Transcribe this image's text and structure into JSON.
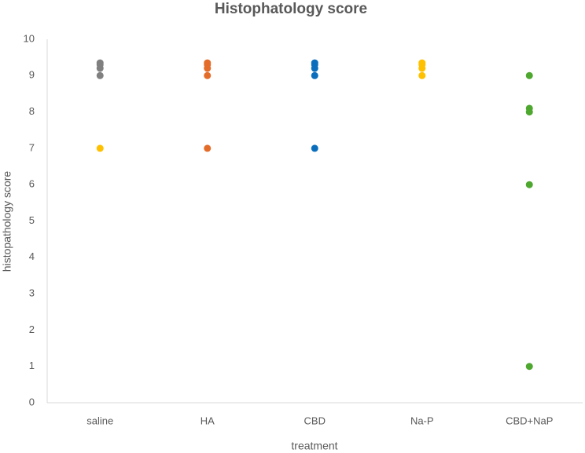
{
  "chart_data": {
    "type": "dot",
    "title": "Histophatology score",
    "x_label": "treatment",
    "y_label": "histopathology score",
    "categories": [
      "saline",
      "HA",
      "CBD",
      "Na-P",
      "CBD+NaP"
    ],
    "series": [
      {
        "color": "#808080",
        "values": [
          [
            9,
            9.2,
            9.3,
            9.35
          ],
          [],
          [],
          [],
          []
        ]
      },
      {
        "color": "#ffc000",
        "values": [
          [
            7
          ],
          [],
          [],
          [
            9,
            9.2,
            9.3,
            9.35
          ],
          []
        ]
      },
      {
        "color": "#e46c2a",
        "values": [
          [],
          [
            9,
            9.2,
            9.3,
            9.35,
            7
          ],
          [],
          [],
          []
        ]
      },
      {
        "color": "#0a6ebd",
        "values": [
          [],
          [],
          [
            9,
            9.2,
            9.3,
            9.35,
            7
          ],
          [],
          []
        ]
      },
      {
        "color": "#4ea72e",
        "values": [
          [],
          [],
          [],
          [],
          [
            9,
            8.1,
            8,
            6,
            1
          ]
        ]
      }
    ],
    "ylim": [
      0,
      10
    ],
    "yticks": [
      0,
      1,
      2,
      3,
      4,
      5,
      6,
      7,
      8,
      9,
      10
    ]
  }
}
